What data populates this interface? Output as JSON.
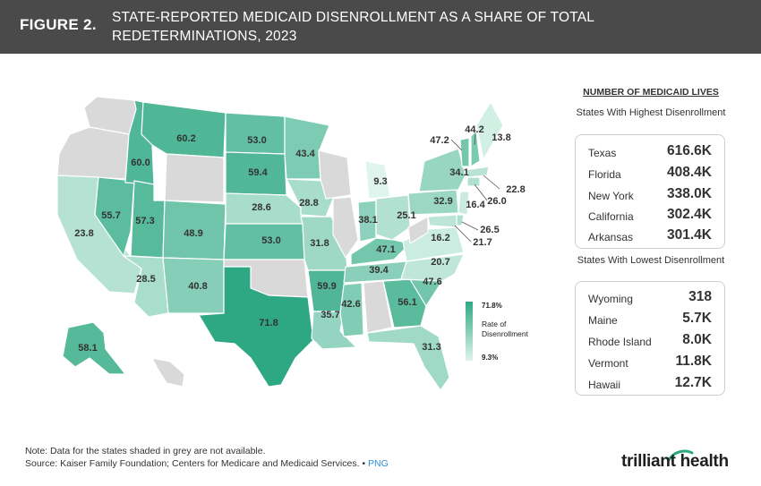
{
  "header": {
    "figure_label": "FIGURE 2.",
    "title": "STATE-REPORTED MEDICAID DISENROLLMENT AS A SHARE OF TOTAL REDETERMINATIONS, 2023"
  },
  "colors": {
    "header_bg": "#4a4a4a",
    "scale_high": "#2ea883",
    "scale_low": "#dff4ec",
    "no_data": "#d9d9d9",
    "link": "#2a8fd6"
  },
  "map": {
    "states": [
      {
        "state": "WA",
        "value": null
      },
      {
        "state": "OR",
        "value": null
      },
      {
        "state": "CA",
        "value": 23.8
      },
      {
        "state": "NV",
        "value": 55.7
      },
      {
        "state": "ID",
        "value": 60.0
      },
      {
        "state": "MT",
        "value": 60.2
      },
      {
        "state": "WY",
        "value": null
      },
      {
        "state": "UT",
        "value": 57.3
      },
      {
        "state": "AZ",
        "value": 28.5
      },
      {
        "state": "CO",
        "value": 48.9
      },
      {
        "state": "NM",
        "value": 40.8
      },
      {
        "state": "ND",
        "value": 53.0
      },
      {
        "state": "SD",
        "value": 59.4
      },
      {
        "state": "NE",
        "value": 28.6
      },
      {
        "state": "KS",
        "value": 53.0
      },
      {
        "state": "OK",
        "value": null
      },
      {
        "state": "TX",
        "value": 71.8
      },
      {
        "state": "MN",
        "value": 43.4
      },
      {
        "state": "IA",
        "value": 28.8
      },
      {
        "state": "MO",
        "value": 31.8
      },
      {
        "state": "AR",
        "value": 59.9
      },
      {
        "state": "LA",
        "value": 35.7
      },
      {
        "state": "WI",
        "value": null
      },
      {
        "state": "IL",
        "value": null
      },
      {
        "state": "MI",
        "value": 9.3
      },
      {
        "state": "IN",
        "value": 38.1
      },
      {
        "state": "OH",
        "value": 25.1
      },
      {
        "state": "KY",
        "value": 47.1
      },
      {
        "state": "TN",
        "value": 39.4
      },
      {
        "state": "MS",
        "value": 42.6
      },
      {
        "state": "AL",
        "value": null
      },
      {
        "state": "GA",
        "value": 56.1
      },
      {
        "state": "FL",
        "value": 31.3
      },
      {
        "state": "SC",
        "value": 47.6
      },
      {
        "state": "NC",
        "value": 20.7
      },
      {
        "state": "VA",
        "value": 16.2
      },
      {
        "state": "WV",
        "value": null
      },
      {
        "state": "PA",
        "value": 32.9
      },
      {
        "state": "NY",
        "value": 34.1
      },
      {
        "state": "VT",
        "value": 47.2
      },
      {
        "state": "NH",
        "value": 44.2
      },
      {
        "state": "ME",
        "value": 13.8
      },
      {
        "state": "MA",
        "value": 22.8
      },
      {
        "state": "CT",
        "value": 26.0
      },
      {
        "state": "NJ",
        "value": 16.4
      },
      {
        "state": "DE",
        "value": 26.5
      },
      {
        "state": "MD",
        "value": 21.7
      },
      {
        "state": "AK",
        "value": 58.1
      },
      {
        "state": "HI",
        "value": null
      }
    ],
    "legend": {
      "max_label": "71.8%",
      "min_label": "9.3%",
      "title": "Rate of Disenrollment"
    }
  },
  "panel": {
    "heading": "NUMBER OF MEDICAID LIVES",
    "highest": {
      "title": "States With Highest Disenrollment",
      "rows": [
        {
          "state": "Texas",
          "value": "616.6K"
        },
        {
          "state": "Florida",
          "value": "408.4K"
        },
        {
          "state": "New York",
          "value": "338.0K"
        },
        {
          "state": "California",
          "value": "302.4K"
        },
        {
          "state": "Arkansas",
          "value": "301.4K"
        }
      ]
    },
    "lowest": {
      "title": "States With Lowest Disenrollment",
      "rows": [
        {
          "state": "Wyoming",
          "value": "318"
        },
        {
          "state": "Maine",
          "value": "5.7K"
        },
        {
          "state": "Rhode Island",
          "value": "8.0K"
        },
        {
          "state": "Vermont",
          "value": "11.8K"
        },
        {
          "state": "Hawaii",
          "value": "12.7K"
        }
      ]
    }
  },
  "footer": {
    "note": "Note: Data for the states shaded in grey are not available.",
    "source": "Source: Kaiser Family Foundation; Centers for Medicare and Medicaid Services.",
    "separator": "•",
    "png_link": "PNG",
    "logo_text": "trilliant health"
  }
}
